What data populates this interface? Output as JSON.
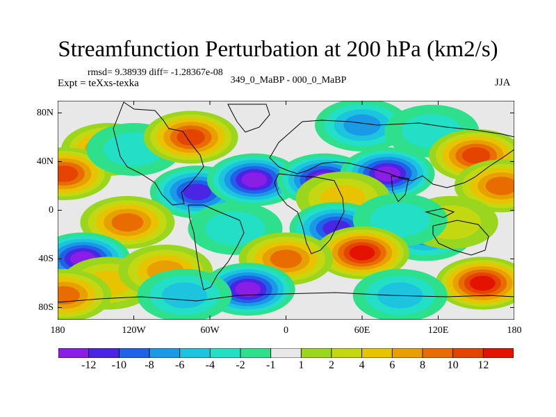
{
  "title": "Streamfunction Perturbation at 200 hPa (km2/s)",
  "stats": {
    "rmsd_text": "rmsd= 9.38939 diff= -1.28367e-08"
  },
  "experiment": "Expt = teXxs-texka",
  "difference_label": "349_0_MaBP - 000_0_MaBP",
  "season": "JJA",
  "map": {
    "projection": "cylindrical equidistant",
    "lon_range": [
      -180,
      180
    ],
    "lat_range": [
      -90,
      90
    ],
    "x_ticks": [
      {
        "value": -180,
        "label": "180"
      },
      {
        "value": -120,
        "label": "120W"
      },
      {
        "value": -60,
        "label": "60W"
      },
      {
        "value": 0,
        "label": "0"
      },
      {
        "value": 60,
        "label": "60E"
      },
      {
        "value": 120,
        "label": "120E"
      },
      {
        "value": 180,
        "label": "180"
      }
    ],
    "y_ticks": [
      {
        "value": 80,
        "label": "80N"
      },
      {
        "value": 40,
        "label": "40N"
      },
      {
        "value": 0,
        "label": "0"
      },
      {
        "value": -40,
        "label": "40S"
      },
      {
        "value": -80,
        "label": "80S"
      }
    ],
    "field_features": [
      {
        "lon": -140,
        "lat": 50,
        "value": 9
      },
      {
        "lon": -175,
        "lat": 30,
        "value": 11
      },
      {
        "lon": -120,
        "lat": 50,
        "value": -3
      },
      {
        "lon": -75,
        "lat": 60,
        "value": 10
      },
      {
        "lon": -70,
        "lat": 15,
        "value": -11
      },
      {
        "lon": -25,
        "lat": 25,
        "value": -12
      },
      {
        "lon": 30,
        "lat": 25,
        "value": -13
      },
      {
        "lon": 80,
        "lat": 30,
        "value": -12
      },
      {
        "lon": 60,
        "lat": 70,
        "value": -7
      },
      {
        "lon": 115,
        "lat": 65,
        "value": -3
      },
      {
        "lon": 150,
        "lat": 45,
        "value": 11
      },
      {
        "lon": 170,
        "lat": 20,
        "value": 8
      },
      {
        "lon": 110,
        "lat": -20,
        "value": -6
      },
      {
        "lon": 130,
        "lat": -10,
        "value": 3
      },
      {
        "lon": -125,
        "lat": -10,
        "value": 9
      },
      {
        "lon": -40,
        "lat": -15,
        "value": -3
      },
      {
        "lon": 45,
        "lat": 10,
        "value": 5
      },
      {
        "lon": 40,
        "lat": -15,
        "value": -10
      },
      {
        "lon": 90,
        "lat": -8,
        "value": -2
      },
      {
        "lon": -160,
        "lat": -40,
        "value": -12
      },
      {
        "lon": -140,
        "lat": -60,
        "value": 4
      },
      {
        "lon": -95,
        "lat": -50,
        "value": 6
      },
      {
        "lon": 60,
        "lat": -35,
        "value": 12
      },
      {
        "lon": 0,
        "lat": -40,
        "value": 8
      },
      {
        "lon": -30,
        "lat": -65,
        "value": -12
      },
      {
        "lon": -80,
        "lat": -70,
        "value": -5
      },
      {
        "lon": 155,
        "lat": -60,
        "value": 12
      },
      {
        "lon": 90,
        "lat": -70,
        "value": -4
      },
      {
        "lon": -175,
        "lat": -70,
        "value": 9
      }
    ]
  },
  "colorbar": {
    "colors": [
      "#8b1ee6",
      "#4b25e4",
      "#1f62e8",
      "#1a9ae6",
      "#1cc4e0",
      "#22dfc6",
      "#2ee08c",
      "#e8e8e8",
      "#9ad61e",
      "#c4d812",
      "#e8c400",
      "#e8a000",
      "#e86c00",
      "#e44400",
      "#e41200"
    ],
    "labels": [
      "-12",
      "-10",
      "-8",
      "-6",
      "-4",
      "-2",
      "-1",
      "1",
      "2",
      "4",
      "6",
      "8",
      "10",
      "12"
    ],
    "levels": [
      -12,
      -10,
      -8,
      -6,
      -4,
      -2,
      -1,
      1,
      2,
      4,
      6,
      8,
      10,
      12
    ]
  }
}
